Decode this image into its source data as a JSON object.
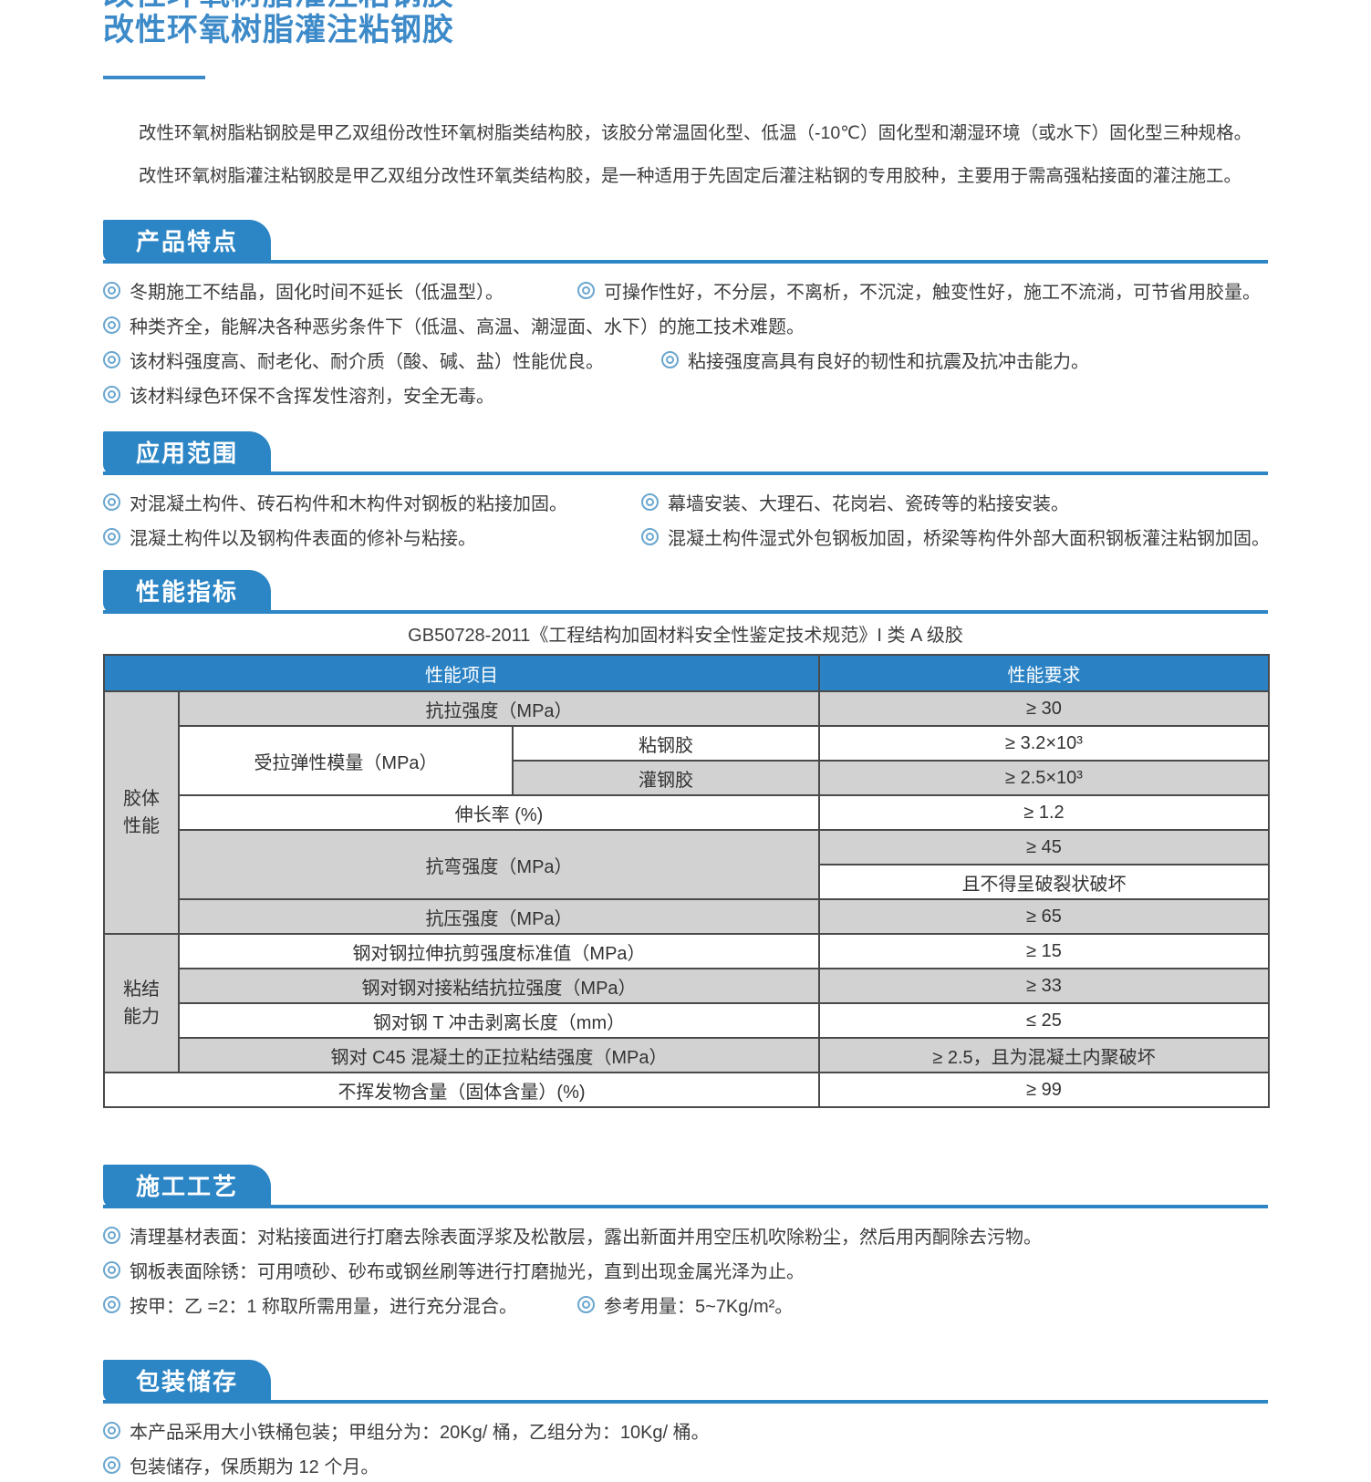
{
  "page": {
    "title": "改性环氧树脂灌注粘钢胶",
    "intro": [
      "改性环氧树脂粘钢胶是甲乙双组份改性环氧树脂类结构胶，该胶分常温固化型、低温（-10℃）固化型和潮湿环境（或水下）固化型三种规格。",
      "改性环氧树脂灌注粘钢胶是甲乙双组分改性环氧类结构胶，是一种适用于先固定后灌注粘钢的专用胶种，主要用于需高强粘接面的灌注施工。"
    ]
  },
  "colors": {
    "accent_blue": "#2c85c5",
    "title_blue": "#3d8ac9",
    "table_header_blue": "#2a82c4",
    "table_gray": "#d2d2d2",
    "bullet_blue": "#6aa6cf"
  },
  "features": {
    "heading": "产品特点",
    "rows": [
      [
        "冬期施工不结晶，固化时间不延长（低温型）。",
        "可操作性好，不分层，不离析，不沉淀，触变性好，施工不流淌，可节省用胶量。"
      ],
      [
        "种类齐全，能解决各种恶劣条件下（低温、高温、潮湿面、水下）的施工技术难题。"
      ],
      [
        "该材料强度高、耐老化、耐介质（酸、碱、盐）性能优良。",
        "粘接强度高具有良好的韧性和抗震及抗冲击能力。"
      ],
      [
        "该材料绿色环保不含挥发性溶剂，安全无毒。"
      ]
    ]
  },
  "application": {
    "heading": "应用范围",
    "rows": [
      [
        "对混凝土构件、砖石构件和木构件对钢板的粘接加固。",
        "幕墙安装、大理石、花岗岩、瓷砖等的粘接安装。"
      ],
      [
        "混凝土构件以及钢构件表面的修补与粘接。",
        "混凝土构件湿式外包钢板加固，桥梁等构件外部大面积钢板灌注粘钢加固。"
      ]
    ]
  },
  "performance": {
    "heading": "性能指标",
    "caption": "GB50728-2011《工程结构加固材料安全性鉴定技术规范》I 类 A 级胶"
  },
  "table": {
    "header_item": "性能项目",
    "header_req": "性能要求",
    "group1": "胶体\n性能",
    "group2": "粘结\n能力",
    "r1_item": "抗拉强度（MPa）",
    "r1_req": "≥ 30",
    "r2_label": "受拉弹性模量（MPa）",
    "r2_sub": "粘钢胶",
    "r2_req": "≥ 3.2×10³",
    "r3_sub": "灌钢胶",
    "r3_req": "≥ 2.5×10³",
    "r4_item": "伸长率 (%)",
    "r4_req": "≥ 1.2",
    "r5_item": "抗弯强度（MPa）",
    "r5_req": "≥ 45",
    "r6_req": "且不得呈破裂状破坏",
    "r7_item": "抗压强度（MPa）",
    "r7_req": "≥ 65",
    "r8_item": "钢对钢拉伸抗剪强度标准值（MPa）",
    "r8_req": "≥ 15",
    "r9_item": "钢对钢对接粘结抗拉强度（MPa）",
    "r9_req": "≥ 33",
    "r10_item": "钢对钢 T 冲击剥离长度（mm）",
    "r10_req": "≤ 25",
    "r11_item": "钢对 C45 混凝土的正拉粘结强度（MPa）",
    "r11_req": "≥ 2.5，且为混凝土内聚破坏",
    "r12_item": "不挥发物含量（固体含量）(%)",
    "r12_req": "≥ 99"
  },
  "process": {
    "heading": "施工工艺",
    "rows": [
      [
        "清理基材表面：对粘接面进行打磨去除表面浮浆及松散层，露出新面并用空压机吹除粉尘，然后用丙酮除去污物。"
      ],
      [
        "钢板表面除锈：可用喷砂、砂布或钢丝刷等进行打磨抛光，直到出现金属光泽为止。"
      ],
      [
        "按甲：乙 =2：1 称取所需用量，进行充分混合。",
        "参考用量：5~7Kg/m²。"
      ]
    ]
  },
  "packaging": {
    "heading": "包装储存",
    "rows": [
      [
        "本产品采用大小铁桶包装；甲组分为：20Kg/ 桶，乙组分为：10Kg/ 桶。"
      ],
      [
        "包装储存，保质期为 12 个月。"
      ]
    ]
  }
}
